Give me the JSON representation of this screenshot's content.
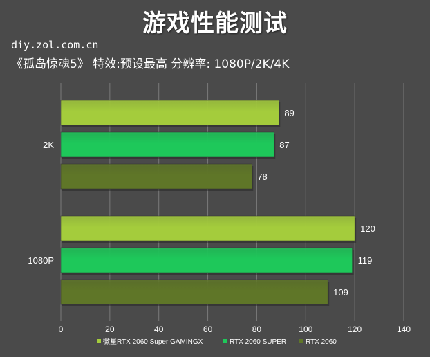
{
  "header": {
    "title": "游戏性能测试",
    "watermark": "diy.zol.com.cn",
    "subtitle": "《孤岛惊魂5》  特效:预设最高  分辨率: 1080P/2K/4K"
  },
  "colors": {
    "background": "#4a4a4a",
    "grid": "#7a7a7a",
    "series": [
      "#a4cc3c",
      "#1ec85a",
      "#5f7628"
    ]
  },
  "chart_data": {
    "type": "bar",
    "orientation": "horizontal",
    "categories": [
      "2K",
      "1080P"
    ],
    "series": [
      {
        "name": "微星RTX 2060 Super GAMINGX",
        "values": [
          89,
          120
        ]
      },
      {
        "name": "RTX 2060 SUPER",
        "values": [
          87,
          119
        ]
      },
      {
        "name": "RTX 2060",
        "values": [
          78,
          109
        ]
      }
    ],
    "xlim": [
      0,
      140
    ],
    "xticks": [
      0,
      20,
      40,
      60,
      80,
      100,
      120,
      140
    ],
    "grid": true,
    "legend": "bottom"
  }
}
